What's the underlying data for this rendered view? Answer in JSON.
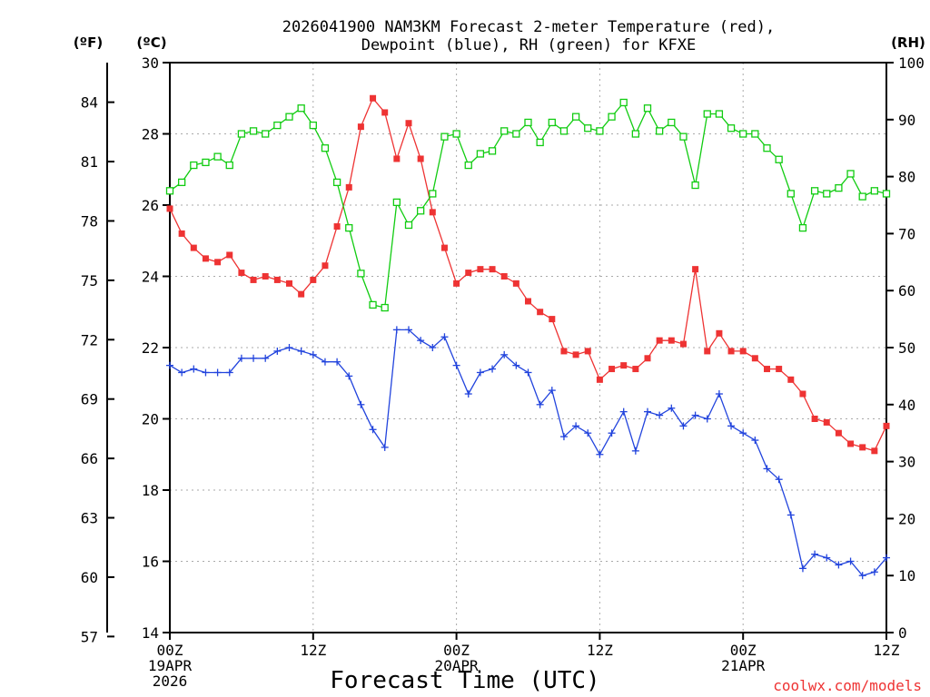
{
  "title_line1": "2026041900 NAM3KM Forecast 2-meter Temperature (red),",
  "title_line2": "Dewpoint (blue), RH (green) for KFXE",
  "xlabel": "Forecast Time (UTC)",
  "credit": "coolwx.com/models",
  "units": {
    "f": "(ºF)",
    "c": "(ºC)",
    "rh": "(RH)"
  },
  "colors": {
    "temp": "#ee3333",
    "dewpoint": "#2244dd",
    "rh": "#11cc11",
    "grid": "#aaaaaa",
    "axis": "#000000"
  },
  "chart_data": {
    "type": "line",
    "x": [
      0,
      1,
      2,
      3,
      4,
      5,
      6,
      7,
      8,
      9,
      10,
      11,
      12,
      13,
      14,
      15,
      16,
      17,
      18,
      19,
      20,
      21,
      22,
      23,
      24,
      25,
      26,
      27,
      28,
      29,
      30,
      31,
      32,
      33,
      34,
      35,
      36,
      37,
      38,
      39,
      40,
      41,
      42,
      43,
      44,
      45,
      46,
      47,
      48,
      49,
      50,
      51,
      52,
      53,
      54,
      55,
      56,
      57,
      58,
      59,
      60
    ],
    "xlim": [
      0,
      60
    ],
    "ylim_c": [
      14,
      30
    ],
    "ylim_rh": [
      0,
      100
    ],
    "x_ticks": [
      {
        "x": 0,
        "label": "00Z",
        "date": "19APR",
        "year": "2026"
      },
      {
        "x": 12,
        "label": "12Z",
        "date": "",
        "year": ""
      },
      {
        "x": 24,
        "label": "00Z",
        "date": "20APR",
        "year": ""
      },
      {
        "x": 36,
        "label": "12Z",
        "date": "",
        "year": ""
      },
      {
        "x": 48,
        "label": "00Z",
        "date": "21APR",
        "year": ""
      },
      {
        "x": 60,
        "label": "12Z",
        "date": "",
        "year": ""
      }
    ],
    "c_ticks": [
      14,
      16,
      18,
      20,
      22,
      24,
      26,
      28,
      30
    ],
    "f_ticks": [
      57,
      60,
      63,
      66,
      69,
      72,
      75,
      78,
      81,
      84
    ],
    "rh_ticks": [
      0,
      10,
      20,
      30,
      40,
      50,
      60,
      70,
      80,
      90,
      100
    ],
    "series": [
      {
        "name": "Temperature",
        "color": "#ee3333",
        "units": "C",
        "marker": "filled-square",
        "values": [
          25.9,
          25.2,
          24.8,
          24.5,
          24.4,
          24.6,
          24.1,
          23.9,
          24.0,
          23.9,
          23.8,
          23.5,
          23.9,
          24.3,
          25.4,
          26.5,
          28.2,
          29.0,
          28.6,
          27.3,
          28.3,
          27.3,
          25.8,
          24.8,
          23.8,
          24.1,
          24.2,
          24.2,
          24.0,
          23.8,
          23.3,
          23.0,
          22.8,
          21.9,
          21.8,
          21.9,
          21.1,
          21.4,
          21.5,
          21.4,
          21.7,
          22.2,
          22.2,
          22.1,
          24.2,
          21.9,
          22.4,
          21.9,
          21.9,
          21.7,
          21.4,
          21.4,
          21.1,
          20.7,
          20.0,
          19.9,
          19.6,
          19.3,
          19.2,
          19.1,
          19.8
        ]
      },
      {
        "name": "Dewpoint",
        "color": "#2244dd",
        "units": "C",
        "marker": "plus",
        "values": [
          21.5,
          21.3,
          21.4,
          21.3,
          21.3,
          21.3,
          21.7,
          21.7,
          21.7,
          21.9,
          22.0,
          21.9,
          21.8,
          21.6,
          21.6,
          21.2,
          20.4,
          19.7,
          19.2,
          22.5,
          22.5,
          22.2,
          22.0,
          22.3,
          21.5,
          20.7,
          21.3,
          21.4,
          21.8,
          21.5,
          21.3,
          20.4,
          20.8,
          19.5,
          19.8,
          19.6,
          19.0,
          19.6,
          20.2,
          19.1,
          20.2,
          20.1,
          20.3,
          19.8,
          20.1,
          20.0,
          20.7,
          19.8,
          19.6,
          19.4,
          18.6,
          18.3,
          17.3,
          15.8,
          16.2,
          16.1,
          15.9,
          16.0,
          15.6,
          15.7,
          16.1
        ]
      },
      {
        "name": "RH",
        "color": "#11cc11",
        "units": "%",
        "marker": "open-square",
        "values": [
          77.5,
          79,
          82,
          82.5,
          83.5,
          82,
          87.5,
          88,
          87.5,
          89,
          90.5,
          92,
          89,
          85,
          79,
          71,
          63,
          57.5,
          57,
          75.5,
          71.5,
          74,
          77,
          87,
          87.5,
          82,
          84,
          84.5,
          88,
          87.5,
          89.5,
          86,
          89.5,
          88,
          90.5,
          88.5,
          88,
          90.5,
          93,
          87.5,
          92,
          88,
          89.5,
          87,
          78.5,
          91,
          91,
          88.5,
          87.5,
          87.5,
          85,
          83,
          77,
          71,
          77.5,
          77,
          78,
          80.5,
          76.5,
          77.5,
          77
        ]
      }
    ]
  }
}
